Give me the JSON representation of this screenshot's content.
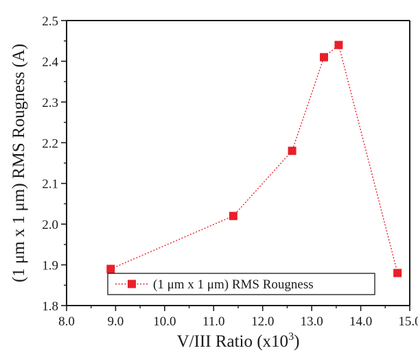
{
  "chart_data": {
    "type": "line",
    "x": [
      8.9,
      11.4,
      12.6,
      13.25,
      13.55,
      14.75
    ],
    "series": [
      {
        "name": "(1 μm x 1 μm) RMS Rougness",
        "values": [
          1.89,
          2.02,
          2.18,
          2.41,
          2.44,
          1.88
        ],
        "color": "#e8202a",
        "marker": "square",
        "line_style": "dotted"
      }
    ],
    "xlabel": "V/III Ratio (x10",
    "xlabel_superscript": "3",
    "xlabel_suffix": ")",
    "ylabel": "(1 μm x 1 μm) RMS Rougness (A)",
    "xlim": [
      8.0,
      15.0
    ],
    "ylim": [
      1.8,
      2.5
    ],
    "xticks": [
      "8.0",
      "9.0",
      "10.0",
      "11.0",
      "12.0",
      "13.0",
      "14.0",
      "15.0"
    ],
    "yticks": [
      "1.8",
      "1.9",
      "2.0",
      "2.1",
      "2.2",
      "2.3",
      "2.4",
      "2.5"
    ],
    "grid": false,
    "legend_position": "bottom-center"
  }
}
